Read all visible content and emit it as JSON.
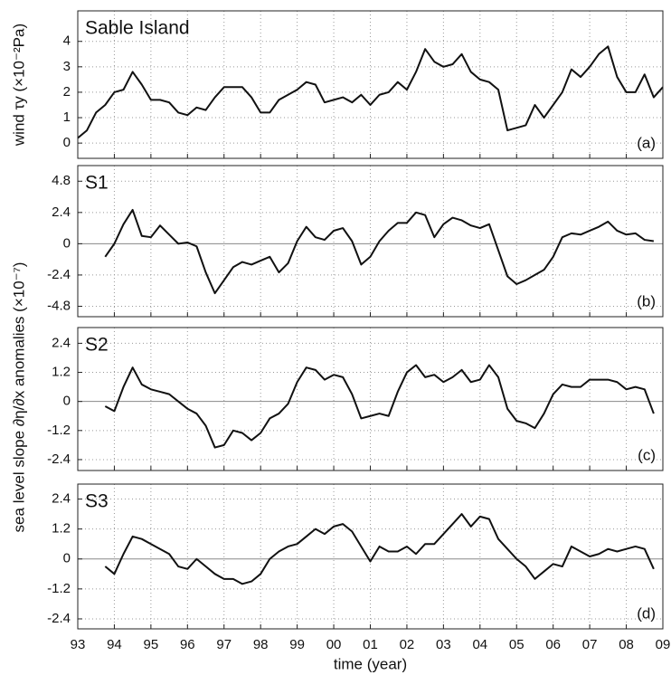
{
  "chart_data": [
    {
      "type": "line",
      "title": "Sable Island",
      "annotation": "(a)",
      "ylabel": "wind τy (×10⁻²Pa)",
      "color": "#111",
      "x": [
        1993.0,
        1993.25,
        1993.5,
        1993.75,
        1994.0,
        1994.25,
        1994.5,
        1994.75,
        1995.0,
        1995.25,
        1995.5,
        1995.75,
        1996.0,
        1996.25,
        1996.5,
        1996.75,
        1997.0,
        1997.25,
        1997.5,
        1997.75,
        1998.0,
        1998.25,
        1998.5,
        1998.75,
        1999.0,
        1999.25,
        1999.5,
        1999.75,
        2000.0,
        2000.25,
        2000.5,
        2000.75,
        2001.0,
        2001.25,
        2001.5,
        2001.75,
        2002.0,
        2002.25,
        2002.5,
        2002.75,
        2003.0,
        2003.25,
        2003.5,
        2003.75,
        2004.0,
        2004.25,
        2004.5,
        2004.75,
        2005.0,
        2005.25,
        2005.5,
        2005.75,
        2006.0,
        2006.25,
        2006.5,
        2006.75,
        2007.0,
        2007.25,
        2007.5,
        2007.75,
        2008.0,
        2008.25,
        2008.5,
        2008.75,
        2009.0
      ],
      "values": [
        0.2,
        0.5,
        1.2,
        1.5,
        2.0,
        2.1,
        2.8,
        2.3,
        1.7,
        1.7,
        1.6,
        1.2,
        1.1,
        1.4,
        1.3,
        1.8,
        2.2,
        2.2,
        2.2,
        1.8,
        1.2,
        1.2,
        1.7,
        1.9,
        2.1,
        2.4,
        2.3,
        1.6,
        1.7,
        1.8,
        1.6,
        1.9,
        1.5,
        1.9,
        2.0,
        2.4,
        2.1,
        2.8,
        3.7,
        3.2,
        3.0,
        3.1,
        3.5,
        2.8,
        2.5,
        2.4,
        2.1,
        0.5,
        0.6,
        0.7,
        1.5,
        1.0,
        1.5,
        2.0,
        2.9,
        2.6,
        3.0,
        3.5,
        3.8,
        2.6,
        2.0,
        2.0,
        2.7,
        1.8,
        2.2
      ],
      "ylim": [
        -0.6,
        5.2
      ],
      "yticks": [
        0,
        1,
        2,
        3,
        4
      ],
      "grid": true,
      "zero_line": false
    },
    {
      "type": "line",
      "title": "S1",
      "annotation": "(b)",
      "ylabel": "sea level slope ∂η/∂x anomalies (×10⁻⁷)",
      "color": "#111",
      "x": [
        1993.75,
        1994.0,
        1994.25,
        1994.5,
        1994.75,
        1995.0,
        1995.25,
        1995.5,
        1995.75,
        1996.0,
        1996.25,
        1996.5,
        1996.75,
        1997.0,
        1997.25,
        1997.5,
        1997.75,
        1998.0,
        1998.25,
        1998.5,
        1998.75,
        1999.0,
        1999.25,
        1999.5,
        1999.75,
        2000.0,
        2000.25,
        2000.5,
        2000.75,
        2001.0,
        2001.25,
        2001.5,
        2001.75,
        2002.0,
        2002.25,
        2002.5,
        2002.75,
        2003.0,
        2003.25,
        2003.5,
        2003.75,
        2004.0,
        2004.25,
        2004.5,
        2004.75,
        2005.0,
        2005.25,
        2005.5,
        2005.75,
        2006.0,
        2006.25,
        2006.5,
        2006.75,
        2007.0,
        2007.25,
        2007.5,
        2007.75,
        2008.0,
        2008.25,
        2008.5,
        2008.75
      ],
      "values": [
        -1.0,
        0.0,
        1.5,
        2.6,
        0.6,
        0.5,
        1.4,
        0.7,
        0.0,
        0.1,
        -0.2,
        -2.2,
        -3.8,
        -2.8,
        -1.8,
        -1.4,
        -1.6,
        -1.3,
        -1.0,
        -2.2,
        -1.5,
        0.2,
        1.3,
        0.5,
        0.3,
        1.0,
        1.2,
        0.2,
        -1.6,
        -1.0,
        0.2,
        1.0,
        1.6,
        1.6,
        2.4,
        2.2,
        0.5,
        1.5,
        2.0,
        1.8,
        1.4,
        1.2,
        1.5,
        -0.5,
        -2.5,
        -3.1,
        -2.8,
        -2.4,
        -2.0,
        -1.0,
        0.5,
        0.8,
        0.7,
        1.0,
        1.3,
        1.7,
        1.0,
        0.7,
        0.8,
        0.3,
        0.2
      ],
      "ylim": [
        -5.6,
        6.0
      ],
      "yticks": [
        -4.8,
        -2.4,
        0,
        2.4,
        4.8
      ],
      "grid": true,
      "zero_line": true
    },
    {
      "type": "line",
      "title": "S2",
      "annotation": "(c)",
      "color": "#111",
      "x": [
        1993.75,
        1994.0,
        1994.25,
        1994.5,
        1994.75,
        1995.0,
        1995.25,
        1995.5,
        1995.75,
        1996.0,
        1996.25,
        1996.5,
        1996.75,
        1997.0,
        1997.25,
        1997.5,
        1997.75,
        1998.0,
        1998.25,
        1998.5,
        1998.75,
        1999.0,
        1999.25,
        1999.5,
        1999.75,
        2000.0,
        2000.25,
        2000.5,
        2000.75,
        2001.0,
        2001.25,
        2001.5,
        2001.75,
        2002.0,
        2002.25,
        2002.5,
        2002.75,
        2003.0,
        2003.25,
        2003.5,
        2003.75,
        2004.0,
        2004.25,
        2004.5,
        2004.75,
        2005.0,
        2005.25,
        2005.5,
        2005.75,
        2006.0,
        2006.25,
        2006.5,
        2006.75,
        2007.0,
        2007.25,
        2007.5,
        2007.75,
        2008.0,
        2008.25,
        2008.5,
        2008.75
      ],
      "values": [
        -0.2,
        -0.4,
        0.6,
        1.4,
        0.7,
        0.5,
        0.4,
        0.3,
        0.0,
        -0.3,
        -0.5,
        -1.0,
        -1.9,
        -1.8,
        -1.2,
        -1.3,
        -1.6,
        -1.3,
        -0.7,
        -0.5,
        -0.1,
        0.8,
        1.4,
        1.3,
        0.9,
        1.1,
        1.0,
        0.3,
        -0.7,
        -0.6,
        -0.5,
        -0.6,
        0.4,
        1.2,
        1.5,
        1.0,
        1.1,
        0.8,
        1.0,
        1.3,
        0.8,
        0.9,
        1.5,
        1.0,
        -0.3,
        -0.8,
        -0.9,
        -1.1,
        -0.5,
        0.3,
        0.7,
        0.6,
        0.6,
        0.9,
        0.9,
        0.9,
        0.8,
        0.5,
        0.6,
        0.5,
        -0.5
      ],
      "ylim": [
        -2.85,
        3.05
      ],
      "yticks": [
        -2.4,
        -1.2,
        0,
        1.2,
        2.4
      ],
      "grid": true,
      "zero_line": true
    },
    {
      "type": "line",
      "title": "S3",
      "annotation": "(d)",
      "xlabel": "time (year)",
      "color": "#111",
      "x": [
        1993.75,
        1994.0,
        1994.25,
        1994.5,
        1994.75,
        1995.0,
        1995.25,
        1995.5,
        1995.75,
        1996.0,
        1996.25,
        1996.5,
        1996.75,
        1997.0,
        1997.25,
        1997.5,
        1997.75,
        1998.0,
        1998.25,
        1998.5,
        1998.75,
        1999.0,
        1999.25,
        1999.5,
        1999.75,
        2000.0,
        2000.25,
        2000.5,
        2000.75,
        2001.0,
        2001.25,
        2001.5,
        2001.75,
        2002.0,
        2002.25,
        2002.5,
        2002.75,
        2003.0,
        2003.25,
        2003.5,
        2003.75,
        2004.0,
        2004.25,
        2004.5,
        2004.75,
        2005.0,
        2005.25,
        2005.5,
        2005.75,
        2006.0,
        2006.25,
        2006.5,
        2006.75,
        2007.0,
        2007.25,
        2007.5,
        2007.75,
        2008.0,
        2008.25,
        2008.5,
        2008.75
      ],
      "values": [
        -0.3,
        -0.6,
        0.2,
        0.9,
        0.8,
        0.6,
        0.4,
        0.2,
        -0.3,
        -0.4,
        0.0,
        -0.3,
        -0.6,
        -0.8,
        -0.8,
        -1.0,
        -0.9,
        -0.6,
        0.0,
        0.3,
        0.5,
        0.6,
        0.9,
        1.2,
        1.0,
        1.3,
        1.4,
        1.1,
        0.5,
        -0.1,
        0.5,
        0.3,
        0.3,
        0.5,
        0.2,
        0.6,
        0.6,
        1.0,
        1.4,
        1.8,
        1.3,
        1.7,
        1.6,
        0.8,
        0.4,
        0.0,
        -0.3,
        -0.8,
        -0.5,
        -0.2,
        -0.3,
        0.5,
        0.3,
        0.1,
        0.2,
        0.4,
        0.3,
        0.4,
        0.5,
        0.4,
        -0.4
      ],
      "ylim": [
        -2.8,
        3.0
      ],
      "yticks": [
        -2.4,
        -1.2,
        0,
        1.2,
        2.4
      ],
      "grid": true,
      "zero_line": true,
      "xlim": [
        1993,
        2009
      ],
      "xticks": [
        {
          "value": 1993,
          "label": "93"
        },
        {
          "value": 1994,
          "label": "94"
        },
        {
          "value": 1995,
          "label": "95"
        },
        {
          "value": 1996,
          "label": "96"
        },
        {
          "value": 1997,
          "label": "97"
        },
        {
          "value": 1998,
          "label": "98"
        },
        {
          "value": 1999,
          "label": "99"
        },
        {
          "value": 2000,
          "label": "00"
        },
        {
          "value": 2001,
          "label": "01"
        },
        {
          "value": 2002,
          "label": "02"
        },
        {
          "value": 2003,
          "label": "03"
        },
        {
          "value": 2004,
          "label": "04"
        },
        {
          "value": 2005,
          "label": "05"
        },
        {
          "value": 2006,
          "label": "06"
        },
        {
          "value": 2007,
          "label": "07"
        },
        {
          "value": 2008,
          "label": "08"
        },
        {
          "value": 2009,
          "label": "09"
        }
      ]
    }
  ]
}
